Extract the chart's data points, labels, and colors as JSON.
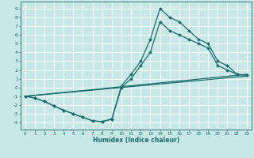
{
  "xlabel": "Humidex (Indice chaleur)",
  "bg_color": "#c8e8e8",
  "grid_color": "#ffffff",
  "line_color": "#1a6b6b",
  "marker": "D",
  "markersize": 2.0,
  "linewidth": 0.9,
  "xlim": [
    -0.5,
    23.5
  ],
  "ylim": [
    -4.8,
    9.8
  ],
  "xticks": [
    0,
    1,
    2,
    3,
    4,
    5,
    6,
    7,
    8,
    9,
    10,
    11,
    12,
    13,
    14,
    15,
    16,
    17,
    18,
    19,
    20,
    21,
    22,
    23
  ],
  "yticks": [
    -4,
    -3,
    -2,
    -1,
    0,
    1,
    2,
    3,
    4,
    5,
    6,
    7,
    8,
    9
  ],
  "series_peaked_1": {
    "x": [
      0,
      1,
      2,
      3,
      4,
      5,
      6,
      7,
      8,
      9,
      10,
      11,
      12,
      13,
      14,
      15,
      16,
      17,
      18,
      19,
      20,
      21,
      22,
      23
    ],
    "y": [
      -1,
      -1.2,
      -1.6,
      -2.1,
      -2.6,
      -3.0,
      -3.4,
      -3.8,
      -3.9,
      -3.6,
      0.2,
      1.5,
      3.0,
      5.5,
      9.0,
      8.0,
      7.5,
      6.5,
      5.5,
      5.0,
      3.0,
      2.5,
      1.5,
      1.4
    ]
  },
  "series_peaked_2": {
    "x": [
      0,
      1,
      2,
      3,
      4,
      5,
      6,
      7,
      8,
      9,
      10,
      11,
      12,
      13,
      14,
      15,
      16,
      17,
      18,
      19,
      20,
      21,
      22,
      23
    ],
    "y": [
      -1,
      -1.2,
      -1.6,
      -2.1,
      -2.6,
      -3.0,
      -3.4,
      -3.8,
      -3.9,
      -3.6,
      0.0,
      1.0,
      2.5,
      4.0,
      7.5,
      6.5,
      6.0,
      5.5,
      5.0,
      4.5,
      2.5,
      2.0,
      1.5,
      1.4
    ]
  },
  "series_straight_1": {
    "x": [
      0,
      23
    ],
    "y": [
      -1.0,
      1.5
    ]
  },
  "series_straight_2": {
    "x": [
      0,
      23
    ],
    "y": [
      -1.0,
      1.3
    ]
  }
}
